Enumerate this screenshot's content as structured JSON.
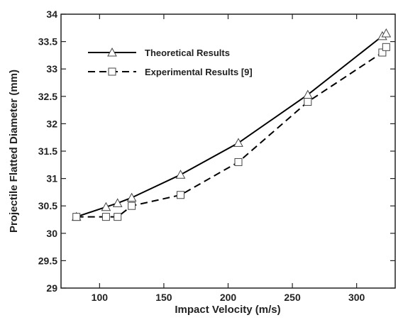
{
  "chart_data": {
    "type": "line",
    "xlabel": "Impact Velocity (m/s)",
    "ylabel": "Projectile Flatted Diameter (mm)",
    "xlim": [
      70,
      330
    ],
    "ylim": [
      29,
      34
    ],
    "xticks": [
      100,
      150,
      200,
      250,
      300
    ],
    "yticks": [
      29,
      29.5,
      30,
      30.5,
      31,
      31.5,
      32,
      32.5,
      33,
      33.5,
      34
    ],
    "xtick_labels": [
      "100",
      "150",
      "200",
      "250",
      "300"
    ],
    "ytick_labels": [
      "29",
      "29.5",
      "30",
      "30.5",
      "31",
      "31.5",
      "32",
      "32.5",
      "33",
      "33.5",
      "34"
    ],
    "grid": false,
    "legend_position": "top-left",
    "series": [
      {
        "name": "Theoretical Results",
        "marker": "triangle",
        "line_style": "solid",
        "color": "#000000",
        "x": [
          82,
          105,
          114,
          125,
          163,
          208,
          262,
          320,
          323
        ],
        "y": [
          30.3,
          30.48,
          30.55,
          30.65,
          31.07,
          31.65,
          32.53,
          33.6,
          33.65
        ]
      },
      {
        "name": "Experimental Results [9]",
        "marker": "square",
        "line_style": "dashed",
        "color": "#000000",
        "x": [
          82,
          105,
          114,
          125,
          163,
          208,
          262,
          320,
          323
        ],
        "y": [
          30.3,
          30.3,
          30.3,
          30.5,
          30.7,
          31.3,
          32.4,
          33.3,
          33.4
        ]
      }
    ]
  }
}
